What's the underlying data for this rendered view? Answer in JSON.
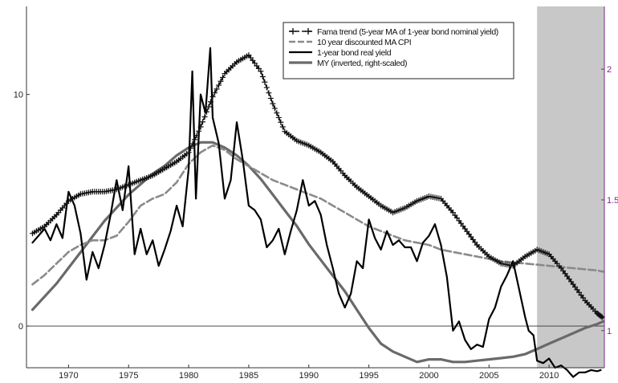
{
  "chart_data": {
    "type": "line",
    "xlim": [
      1966.5,
      2014.6
    ],
    "ylim": [
      -1.8,
      13.8
    ],
    "y2lim": [
      0.858,
      2.24
    ],
    "shaded_region": [
      2009,
      2014.6
    ],
    "x_ticks": [
      1970,
      1975,
      1980,
      1985,
      1990,
      1995,
      2000,
      2005,
      2010
    ],
    "x_tick_labels": [
      "1970",
      "1975",
      "1980",
      "1985",
      "1990",
      "1995",
      "2000",
      "2005",
      "2010"
    ],
    "y_ticks": [
      0,
      10
    ],
    "y_tick_labels": [
      "0",
      "10"
    ],
    "y2_ticks": [
      1,
      1.5,
      2
    ],
    "y2_tick_labels": [
      "1",
      "1.5",
      "2"
    ],
    "zero_line": true,
    "legend_position": "top-right",
    "series": [
      {
        "name": "Fama trend (5-year MA of 1-year bond nominal yield)",
        "style": "dashed-plus",
        "color": "#111111",
        "axis": "left",
        "x": [
          1967,
          1968,
          1969,
          1970,
          1971,
          1972,
          1973,
          1974,
          1975,
          1976,
          1977,
          1978,
          1979,
          1980,
          1981,
          1982,
          1983,
          1984,
          1985,
          1986,
          1987,
          1988,
          1989,
          1990,
          1991,
          1992,
          1993,
          1994,
          1995,
          1996,
          1997,
          1998,
          1999,
          2000,
          2001,
          2002,
          2003,
          2004,
          2005,
          2006,
          2007,
          2008,
          2009,
          2010,
          2011,
          2012,
          2013,
          2014,
          2014.5
        ],
        "y": [
          4.0,
          4.3,
          4.8,
          5.4,
          5.7,
          5.8,
          5.8,
          5.9,
          6.1,
          6.3,
          6.5,
          6.8,
          7.1,
          7.5,
          8.6,
          9.9,
          10.9,
          11.4,
          11.7,
          11.0,
          9.6,
          8.4,
          8.0,
          7.8,
          7.5,
          7.1,
          6.5,
          6.0,
          5.6,
          5.2,
          4.9,
          5.1,
          5.4,
          5.6,
          5.5,
          4.9,
          4.2,
          3.5,
          3.0,
          2.7,
          2.6,
          3.0,
          3.3,
          3.1,
          2.5,
          1.8,
          1.1,
          0.55,
          0.35
        ]
      },
      {
        "name": "10 year discounted MA CPI",
        "style": "dashed",
        "color": "#8a8a8a",
        "axis": "left",
        "x": [
          1967,
          1968,
          1969,
          1970,
          1971,
          1972,
          1973,
          1974,
          1975,
          1976,
          1977,
          1978,
          1979,
          1980,
          1981,
          1982,
          1983,
          1984,
          1985,
          1986,
          1987,
          1988,
          1989,
          1990,
          1991,
          1992,
          1993,
          1994,
          1995,
          1996,
          1997,
          1998,
          1999,
          2000,
          2001,
          2002,
          2003,
          2004,
          2005,
          2006,
          2007,
          2008,
          2009,
          2010,
          2011,
          2012,
          2013,
          2014,
          2014.5
        ],
        "y": [
          1.8,
          2.2,
          2.7,
          3.2,
          3.5,
          3.7,
          3.7,
          3.9,
          4.5,
          5.2,
          5.5,
          5.7,
          6.2,
          7.0,
          7.5,
          7.8,
          7.6,
          7.2,
          6.9,
          6.6,
          6.3,
          6.1,
          5.9,
          5.7,
          5.5,
          5.2,
          4.9,
          4.6,
          4.3,
          4.1,
          3.9,
          3.7,
          3.6,
          3.5,
          3.3,
          3.2,
          3.1,
          3.0,
          2.9,
          2.8,
          2.75,
          2.7,
          2.65,
          2.6,
          2.55,
          2.5,
          2.45,
          2.4,
          2.35
        ]
      },
      {
        "name": "1-year bond real yield",
        "style": "solid",
        "color": "#000000",
        "axis": "left",
        "x": [
          1967,
          1967.5,
          1968,
          1968.5,
          1969,
          1969.5,
          1970,
          1970.5,
          1971,
          1971.5,
          1972,
          1972.5,
          1973,
          1973.5,
          1974,
          1974.5,
          1975,
          1975.5,
          1976,
          1976.5,
          1977,
          1977.5,
          1978,
          1978.5,
          1979,
          1979.5,
          1980,
          1980.3,
          1980.6,
          1981,
          1981.4,
          1981.8,
          1982,
          1982.5,
          1983,
          1983.5,
          1984,
          1984.5,
          1985,
          1985.5,
          1986,
          1986.5,
          1987,
          1987.5,
          1988,
          1988.5,
          1989,
          1989.5,
          1990,
          1990.5,
          1991,
          1991.5,
          1992,
          1992.5,
          1993,
          1993.5,
          1994,
          1994.5,
          1995,
          1995.5,
          1996,
          1996.5,
          1997,
          1997.5,
          1998,
          1998.5,
          1999,
          1999.5,
          2000,
          2000.5,
          2001,
          2001.5,
          2002,
          2002.5,
          2003,
          2003.5,
          2004,
          2004.5,
          2005,
          2005.5,
          2006,
          2006.5,
          2007,
          2007.5,
          2008,
          2008.3,
          2008.7,
          2009,
          2009.5,
          2010,
          2010.5,
          2011,
          2011.5,
          2012,
          2012.5,
          2013,
          2013.5,
          2014,
          2014.3
        ],
        "y": [
          3.6,
          3.9,
          4.2,
          3.7,
          4.4,
          3.8,
          5.8,
          5.2,
          4.0,
          2.0,
          3.2,
          2.5,
          3.5,
          4.8,
          6.3,
          5.0,
          6.9,
          3.1,
          4.2,
          3.1,
          3.7,
          2.6,
          3.3,
          4.1,
          5.2,
          4.3,
          6.8,
          11.0,
          5.5,
          10.0,
          9.2,
          12.0,
          9.0,
          7.9,
          5.5,
          6.3,
          8.8,
          7.2,
          5.2,
          5.0,
          4.6,
          3.4,
          3.7,
          4.2,
          3.1,
          4.1,
          5.0,
          6.3,
          5.2,
          5.4,
          4.8,
          3.5,
          2.5,
          1.4,
          0.8,
          1.4,
          2.8,
          2.5,
          4.6,
          3.8,
          3.3,
          4.1,
          3.5,
          3.7,
          3.4,
          3.4,
          2.8,
          3.6,
          3.9,
          4.4,
          3.5,
          2.1,
          -0.2,
          0.2,
          -0.6,
          -1.0,
          -0.8,
          -0.9,
          0.3,
          0.8,
          1.7,
          2.2,
          2.8,
          1.6,
          0.4,
          -0.2,
          -0.4,
          -1.5,
          -1.6,
          -1.4,
          -1.8,
          -1.7,
          -1.9,
          -2.2,
          -2.0,
          -2.0,
          -1.9,
          -1.95,
          -1.9
        ]
      },
      {
        "name": "MY (inverted, right-scaled)",
        "style": "solid-thick",
        "color": "#6a6a6a",
        "axis": "right",
        "x": [
          1967,
          1968,
          1969,
          1970,
          1971,
          1972,
          1973,
          1974,
          1975,
          1976,
          1977,
          1978,
          1979,
          1980,
          1981,
          1982,
          1983,
          1984,
          1985,
          1986,
          1987,
          1988,
          1989,
          1990,
          1991,
          1992,
          1993,
          1994,
          1995,
          1996,
          1997,
          1998,
          1999,
          2000,
          2001,
          2002,
          2003,
          2004,
          2005,
          2006,
          2007,
          2008,
          2009,
          2010,
          2011,
          2012,
          2013,
          2014,
          2014.5
        ],
        "y": [
          1.08,
          1.13,
          1.18,
          1.24,
          1.3,
          1.36,
          1.42,
          1.47,
          1.52,
          1.56,
          1.6,
          1.63,
          1.67,
          1.7,
          1.72,
          1.72,
          1.7,
          1.67,
          1.63,
          1.58,
          1.52,
          1.46,
          1.4,
          1.33,
          1.27,
          1.21,
          1.15,
          1.08,
          1.01,
          0.95,
          0.92,
          0.9,
          0.88,
          0.89,
          0.89,
          0.88,
          0.88,
          0.885,
          0.89,
          0.895,
          0.9,
          0.91,
          0.93,
          0.95,
          0.97,
          0.99,
          1.01,
          1.025,
          1.035
        ]
      }
    ]
  }
}
